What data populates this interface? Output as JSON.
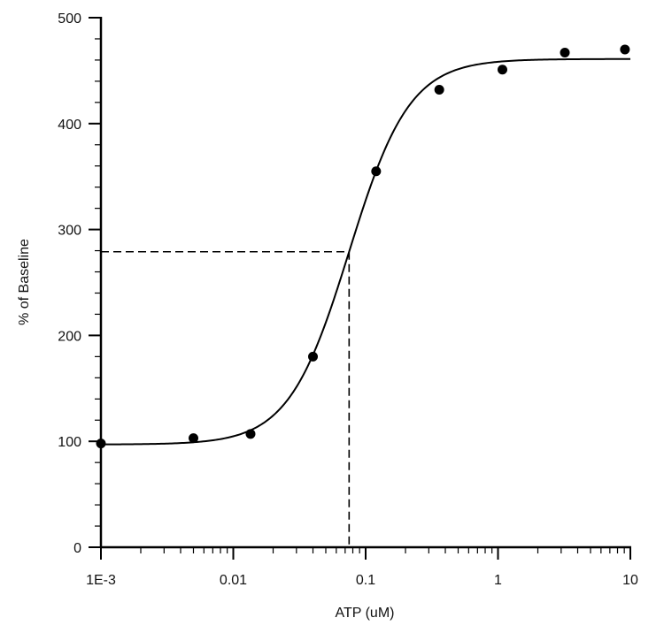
{
  "chart_data": {
    "type": "scatter",
    "xlabel": "ATP (uM)",
    "ylabel": "% of Baseline",
    "x_scale": "log",
    "xlim": [
      0.001,
      10
    ],
    "ylim": [
      0,
      500
    ],
    "x_ticks": [
      {
        "value": 0.001,
        "label": "1E-3"
      },
      {
        "value": 0.01,
        "label": "0.01"
      },
      {
        "value": 0.1,
        "label": "0.1"
      },
      {
        "value": 1,
        "label": "1"
      },
      {
        "value": 10,
        "label": "10"
      }
    ],
    "y_ticks": [
      {
        "value": 0,
        "label": "0"
      },
      {
        "value": 100,
        "label": "100"
      },
      {
        "value": 200,
        "label": "200"
      },
      {
        "value": 300,
        "label": "300"
      },
      {
        "value": 400,
        "label": "400"
      },
      {
        "value": 500,
        "label": "500"
      }
    ],
    "points": [
      {
        "x": 0.001,
        "y": 98
      },
      {
        "x": 0.005,
        "y": 103
      },
      {
        "x": 0.0135,
        "y": 107
      },
      {
        "x": 0.04,
        "y": 180
      },
      {
        "x": 0.12,
        "y": 355
      },
      {
        "x": 0.36,
        "y": 432
      },
      {
        "x": 1.08,
        "y": 451
      },
      {
        "x": 3.2,
        "y": 467
      },
      {
        "x": 9.1,
        "y": 470
      }
    ],
    "fit_curve": {
      "model": "four-parameter logistic",
      "bottom": 97,
      "top": 461,
      "ec50": 0.075,
      "hill": 1.9
    },
    "reference_lines": {
      "x": 0.075,
      "y": 279
    },
    "grid": false,
    "legend": "none",
    "colors": {
      "marker": "#000000",
      "line": "#000000",
      "axis": "#000000"
    }
  }
}
